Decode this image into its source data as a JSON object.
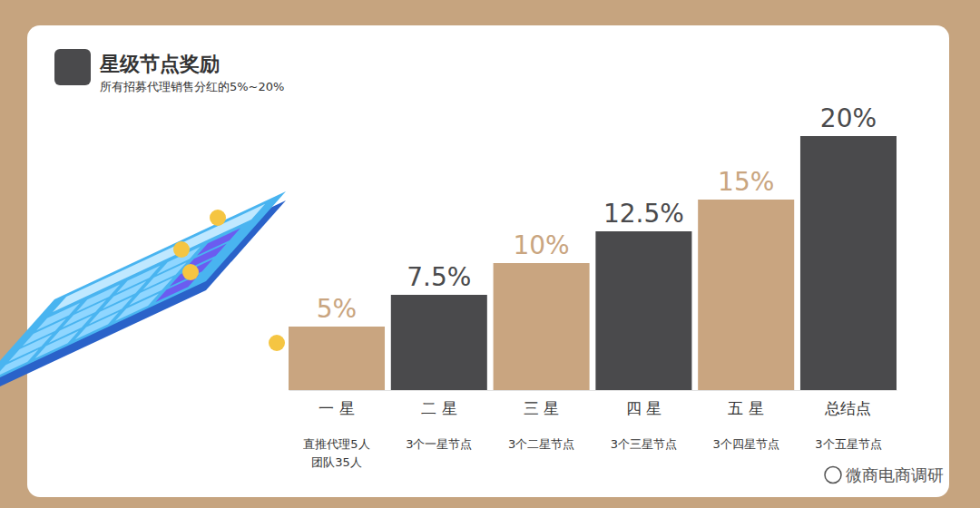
{
  "chart_data": {
    "type": "bar",
    "title": "星级节点奖励",
    "subtitle": "所有招募代理销售分红的5%~20%",
    "categories": [
      "一 星",
      "二 星",
      "三 星",
      "四 星",
      "五 星",
      "总结点"
    ],
    "values": [
      5,
      7.5,
      10,
      12.5,
      15,
      20
    ],
    "value_labels": [
      "5%",
      "7.5%",
      "10%",
      "12.5%",
      "15%",
      "20%"
    ],
    "descriptions": [
      [
        "直推代理5人",
        "团队35人"
      ],
      [
        "3个一星节点"
      ],
      [
        "3个二星节点"
      ],
      [
        "3个三星节点"
      ],
      [
        "3个四星节点"
      ],
      [
        "3个五星节点"
      ]
    ],
    "colors": [
      "#c9a580",
      "#4a4a4c",
      "#c9a580",
      "#4a4a4c",
      "#c9a580",
      "#4a4a4c"
    ],
    "data_labels": true,
    "tick_labels": "x",
    "annotations": [
      "微商电商调研"
    ]
  }
}
